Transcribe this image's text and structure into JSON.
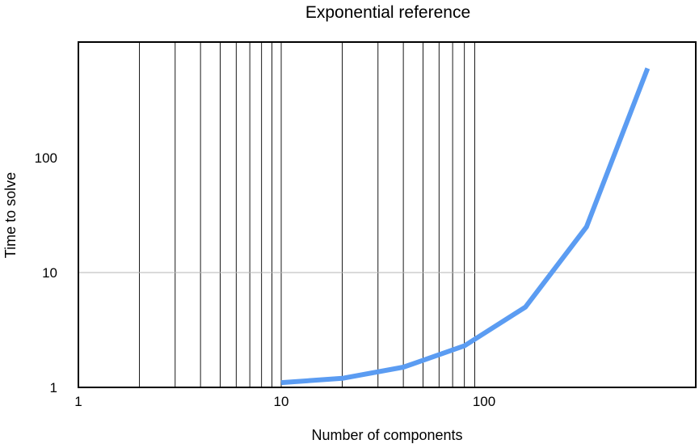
{
  "chart_data": {
    "type": "line",
    "title": "Exponential reference",
    "xlabel": "Number of components",
    "ylabel": "Time to solve",
    "xscale": "log",
    "yscale": "log",
    "xlim": [
      1,
      1000
    ],
    "ylim": [
      1,
      1000
    ],
    "x_ticks": [
      "1",
      "10",
      "100"
    ],
    "y_ticks": [
      "1",
      "10",
      "100"
    ],
    "grid": {
      "x_minor": true,
      "y_major": true
    },
    "legend": "none",
    "series": [
      {
        "color": "#5b9cf2",
        "x": [
          10,
          20,
          40,
          80,
          160,
          320,
          640
        ],
        "y": [
          1.1,
          1.2,
          1.5,
          2.3,
          5,
          25,
          600
        ]
      }
    ]
  }
}
